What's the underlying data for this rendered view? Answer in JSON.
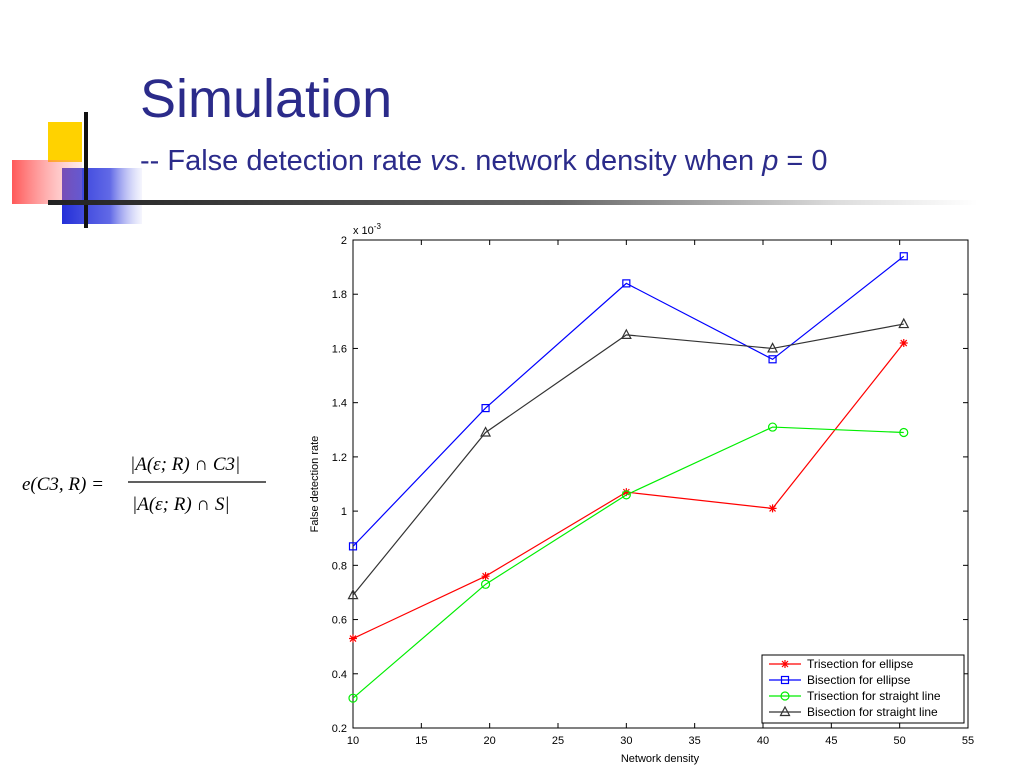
{
  "slide": {
    "title": "Simulation",
    "subtitle_prefix": "-- False detection rate ",
    "subtitle_vs": "vs",
    "subtitle_middle": ". network density when ",
    "subtitle_p": "p",
    "subtitle_suffix": " = 0"
  },
  "formula": {
    "lhs": "e(C3, R) =",
    "numerator": "|A(ε; R) ∩ C3|",
    "denominator": "|A(ε; R) ∩ S|"
  },
  "chart_data": {
    "type": "line",
    "xlabel": "Network density",
    "ylabel": "False detection rate",
    "y_multiplier": "x 10",
    "y_multiplier_exp": "-3",
    "xlim": [
      10,
      55
    ],
    "ylim": [
      0.2,
      2
    ],
    "xticks": [
      10,
      15,
      20,
      25,
      30,
      35,
      40,
      45,
      50,
      55
    ],
    "yticks": [
      0.2,
      0.4,
      0.6,
      0.8,
      1,
      1.2,
      1.4,
      1.6,
      1.8,
      2
    ],
    "legend_position": "bottom-right",
    "series": [
      {
        "name": "Trisection for ellipse",
        "color": "#ff0000",
        "marker": "star",
        "x": [
          10,
          19.7,
          30,
          40.7,
          50.3
        ],
        "y": [
          0.53,
          0.76,
          1.07,
          1.01,
          1.62
        ]
      },
      {
        "name": "Bisection for ellipse",
        "color": "#0000ff",
        "marker": "square",
        "x": [
          10,
          19.7,
          30,
          40.7,
          50.3
        ],
        "y": [
          0.87,
          1.38,
          1.84,
          1.56,
          1.94
        ]
      },
      {
        "name": "Trisection for straight line",
        "color": "#00ee00",
        "marker": "circle",
        "x": [
          10,
          19.7,
          30,
          40.7,
          50.3
        ],
        "y": [
          0.31,
          0.73,
          1.06,
          1.31,
          1.29
        ]
      },
      {
        "name": "Bisection for straight line",
        "color": "#333333",
        "marker": "triangle",
        "x": [
          10,
          19.7,
          30,
          40.7,
          50.3
        ],
        "y": [
          0.69,
          1.29,
          1.65,
          1.6,
          1.69
        ]
      }
    ]
  }
}
